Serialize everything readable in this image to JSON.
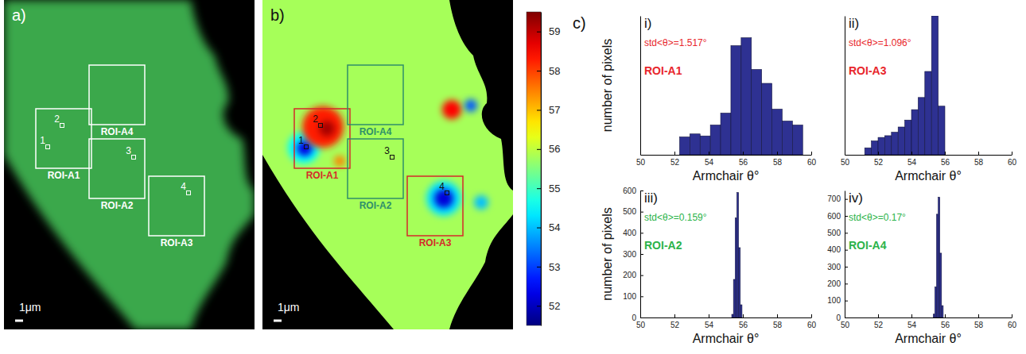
{
  "chart_data": [
    {
      "type": "image",
      "label": "a)",
      "color": "#3aa84c",
      "scale_bar": "1μm",
      "rois": [
        {
          "name": "ROI-A1",
          "color": "#ffffff"
        },
        {
          "name": "ROI-A2",
          "color": "#ffffff"
        },
        {
          "name": "ROI-A3",
          "color": "#ffffff"
        },
        {
          "name": "ROI-A4",
          "color": "#ffffff"
        }
      ],
      "points": [
        {
          "name": "1"
        },
        {
          "name": "2"
        },
        {
          "name": "3"
        },
        {
          "name": "4"
        }
      ]
    },
    {
      "type": "heatmap",
      "label": "b)",
      "scale_bar": "1μm",
      "background": 55.8,
      "spots": [
        {
          "value": 54.5
        },
        {
          "value": 52.3
        },
        {
          "value": 58.3
        },
        {
          "value": 59.2
        },
        {
          "value": 57.5
        },
        {
          "value": 58.5
        },
        {
          "value": 53.2
        },
        {
          "value": 54.3
        },
        {
          "value": 52.2
        },
        {
          "value": 54.0
        }
      ],
      "colorbar": {
        "range": [
          51.5,
          59.5
        ],
        "ticks": [
          52,
          53,
          54,
          55,
          56,
          57,
          58,
          59
        ]
      },
      "rois": [
        {
          "name": "ROI-A1",
          "color": "#d42a2a"
        },
        {
          "name": "ROI-A2",
          "color": "#2f8f6a"
        },
        {
          "name": "ROI-A3",
          "color": "#d42a2a"
        },
        {
          "name": "ROI-A4",
          "color": "#2f8f6a"
        }
      ],
      "points": [
        {
          "name": "1"
        },
        {
          "name": "2"
        },
        {
          "name": "3"
        },
        {
          "name": "4"
        }
      ]
    },
    {
      "type": "histogram",
      "group_label": "c)",
      "label": "i)",
      "color": "#2e3192",
      "bins": [
        52.3,
        52.9,
        53.5,
        54.1,
        54.7,
        55.3,
        55.9,
        56.5,
        57.1,
        57.7,
        58.3,
        58.9,
        59.5
      ],
      "counts": [
        90,
        105,
        95,
        150,
        210,
        550,
        590,
        430,
        360,
        230,
        170,
        150
      ],
      "xlim": [
        50,
        60
      ],
      "xticks": [
        50,
        52,
        54,
        56,
        58,
        60
      ],
      "ylim": [
        0,
        700
      ],
      "tick_labels": "x",
      "x_label": "Armchair θ°",
      "y_label": "number of pixels",
      "annotations": [
        {
          "text": "std<θ>=1.517°",
          "color": "#e8262b"
        },
        {
          "text": "ROI-A1",
          "color": "#e8262b"
        }
      ]
    },
    {
      "type": "histogram",
      "label": "ii)",
      "color": "#2e3192",
      "bins": [
        51.2,
        51.6,
        52.0,
        52.4,
        52.8,
        53.2,
        53.6,
        54.0,
        54.4,
        54.8,
        55.2,
        55.6,
        56.0
      ],
      "counts": [
        40,
        80,
        100,
        110,
        130,
        160,
        200,
        260,
        330,
        480,
        800,
        280
      ],
      "xlim": [
        50,
        60
      ],
      "xticks": [
        50,
        52,
        54,
        56,
        58,
        60
      ],
      "ylim": [
        0,
        800
      ],
      "tick_labels": "x",
      "x_label": "Armchair θ°",
      "annotations": [
        {
          "text": "std<θ>=1.096°",
          "color": "#e8262b"
        },
        {
          "text": "ROI-A3",
          "color": "#e8262b"
        }
      ]
    },
    {
      "type": "histogram",
      "label": "iii)",
      "color": "#2e3192",
      "bins": [
        55.35,
        55.45,
        55.55,
        55.65,
        55.75,
        55.85,
        55.95
      ],
      "counts": [
        15,
        180,
        470,
        590,
        330,
        60
      ],
      "xlim": [
        50,
        60
      ],
      "xticks": [
        50,
        52,
        54,
        56,
        58,
        60
      ],
      "ylim": [
        0,
        600
      ],
      "yticks": [
        0,
        100,
        200,
        300,
        400,
        500,
        600
      ],
      "x_label": "Armchair θ°",
      "y_label": "number of pixels",
      "annotations": [
        {
          "text": "std<θ>=0.159°",
          "color": "#2bb34a"
        },
        {
          "text": "ROI-A2",
          "color": "#2bb34a"
        }
      ]
    },
    {
      "type": "histogram",
      "label": "iv)",
      "color": "#2e3192",
      "bins": [
        55.3,
        55.4,
        55.5,
        55.6,
        55.7,
        55.8,
        55.9
      ],
      "counts": [
        20,
        180,
        610,
        710,
        380,
        70
      ],
      "xlim": [
        50,
        60
      ],
      "xticks": [
        50,
        52,
        54,
        56,
        58,
        60
      ],
      "ylim": [
        0,
        750
      ],
      "yticks": [
        0,
        100,
        200,
        300,
        400,
        500,
        600,
        700
      ],
      "x_label": "Armchair θ°",
      "annotations": [
        {
          "text": "std<θ>=0.17°",
          "color": "#2bb34a"
        },
        {
          "text": "ROI-A4",
          "color": "#2bb34a"
        }
      ]
    }
  ]
}
